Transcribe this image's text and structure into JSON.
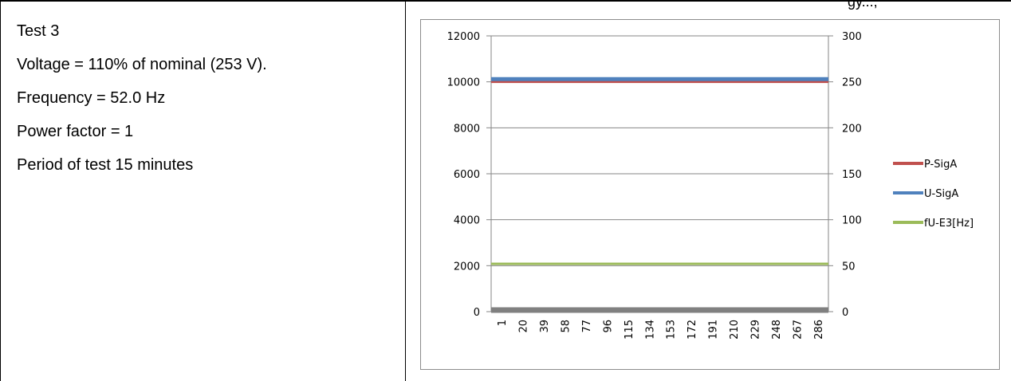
{
  "header_fragment": "gy...,",
  "description": {
    "lines": [
      "Test 3",
      "Voltage = 110% of nominal (253 V).",
      "Frequency = 52.0 Hz",
      "Power factor = 1",
      "Period of test 15 minutes"
    ]
  },
  "chart_data": {
    "type": "line",
    "x": [
      "1",
      "20",
      "39",
      "58",
      "77",
      "96",
      "115",
      "134",
      "153",
      "172",
      "191",
      "210",
      "229",
      "248",
      "267",
      "286"
    ],
    "y_left": {
      "range": [
        0,
        12000
      ],
      "ticks": [
        "0",
        "2000",
        "4000",
        "6000",
        "8000",
        "10000",
        "12000"
      ]
    },
    "y_right": {
      "range": [
        0,
        300
      ],
      "ticks": [
        "0",
        "50",
        "100",
        "150",
        "200",
        "250",
        "300"
      ]
    },
    "grid": true,
    "legend_position": "right",
    "series": [
      {
        "name": "P-SigA",
        "axis": "left",
        "value": 10000,
        "color": "#c0504d"
      },
      {
        "name": "U-SigA",
        "axis": "right",
        "value": 253,
        "color": "#4f81bd"
      },
      {
        "name": "fU-E3[Hz]",
        "axis": "right",
        "value": 52,
        "color": "#9bbb59"
      },
      {
        "name": "",
        "axis": "left",
        "value": 0,
        "color": "#808080"
      }
    ]
  }
}
